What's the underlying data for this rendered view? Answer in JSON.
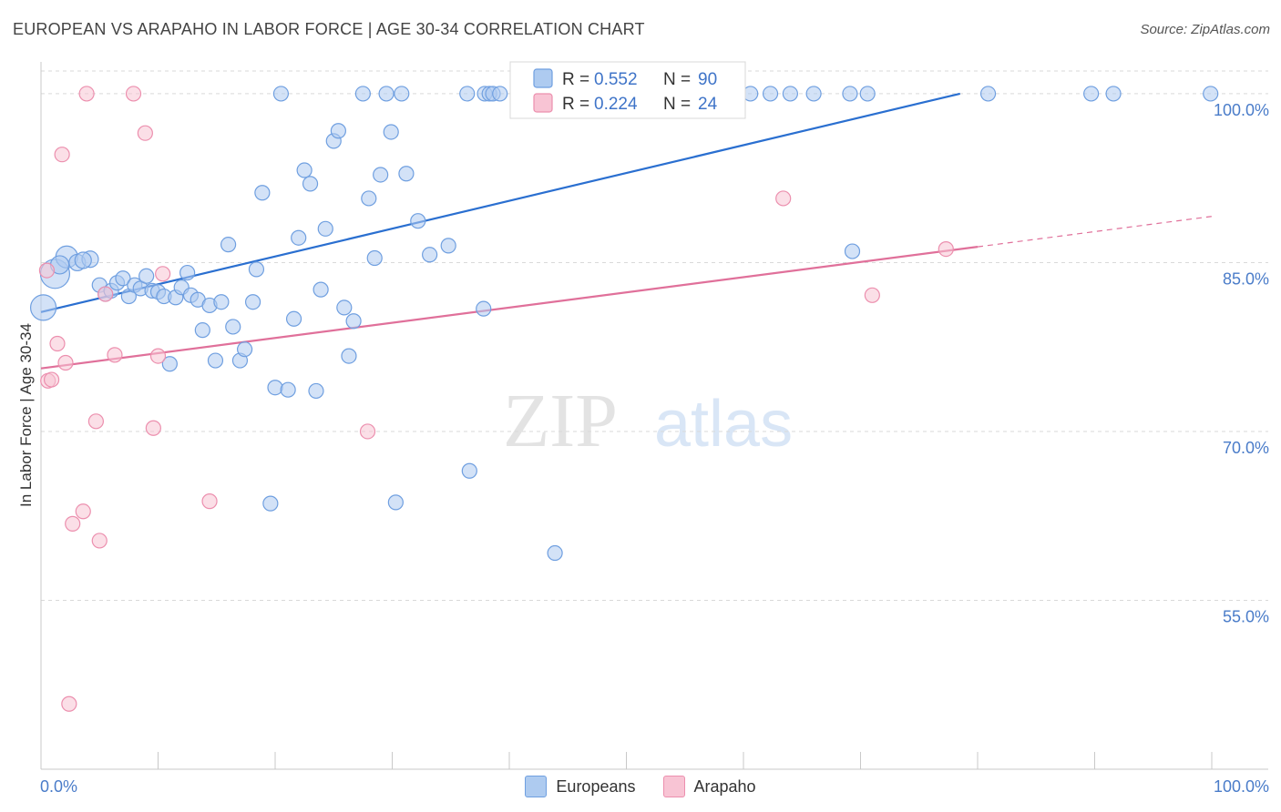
{
  "header": {
    "title": "EUROPEAN VS ARAPAHO IN LABOR FORCE | AGE 30-34 CORRELATION CHART",
    "source": "Source: ZipAtlas.com"
  },
  "watermark": {
    "zip": "ZIP",
    "atlas": "atlas"
  },
  "colors": {
    "europeans_fill": "#aecbf0",
    "europeans_stroke": "#6f9fe0",
    "europeans_line": "#2a6fd0",
    "arapaho_fill": "#f8c4d4",
    "arapaho_stroke": "#ec8fae",
    "arapaho_line": "#e0709a",
    "accent_text": "#3f74c8",
    "grid": "#d9d9d9"
  },
  "chart_data": {
    "type": "scatter",
    "title": "EUROPEAN VS ARAPAHO IN LABOR FORCE | AGE 30-34 CORRELATION CHART",
    "xlabel": "",
    "ylabel": "In Labor Force | Age 30-34",
    "xlim": [
      0,
      100
    ],
    "ylim": [
      40,
      102.5
    ],
    "x_tick_labels": [
      "0.0%",
      "100.0%"
    ],
    "y_ticks": [
      55,
      70,
      85,
      100
    ],
    "y_tick_labels": [
      "55.0%",
      "70.0%",
      "85.0%",
      "100.0%"
    ],
    "grid": true,
    "legend": {
      "position": "top-center",
      "entries": [
        {
          "series": "Europeans",
          "r_label": "R =",
          "r_value": "0.552",
          "n_label": "N =",
          "n_value": "90"
        },
        {
          "series": "Arapaho",
          "r_label": "R =",
          "r_value": "0.224",
          "n_label": "N =",
          "n_value": "24"
        }
      ]
    },
    "series": [
      {
        "name": "Europeans",
        "trend": {
          "x": [
            0,
            78.5
          ],
          "y": [
            80.6,
            100.0
          ]
        },
        "points": [
          {
            "x": 0.2,
            "y": 81.0,
            "s": 14
          },
          {
            "x": 1.2,
            "y": 84.0,
            "s": 16
          },
          {
            "x": 2.2,
            "y": 85.5,
            "s": 12
          },
          {
            "x": 1.6,
            "y": 84.8,
            "s": 10
          },
          {
            "x": 3.1,
            "y": 85.0,
            "s": 9
          },
          {
            "x": 4.2,
            "y": 85.3,
            "s": 9
          },
          {
            "x": 3.6,
            "y": 85.2,
            "s": 9
          },
          {
            "x": 5.0,
            "y": 83.0,
            "s": 8
          },
          {
            "x": 5.5,
            "y": 82.2,
            "s": 8
          },
          {
            "x": 6.0,
            "y": 82.5,
            "s": 8
          },
          {
            "x": 6.5,
            "y": 83.2,
            "s": 8
          },
          {
            "x": 7.0,
            "y": 83.6,
            "s": 8
          },
          {
            "x": 7.5,
            "y": 82.0,
            "s": 8
          },
          {
            "x": 8.0,
            "y": 83.0,
            "s": 8
          },
          {
            "x": 8.5,
            "y": 82.7,
            "s": 8
          },
          {
            "x": 9.0,
            "y": 83.8,
            "s": 8
          },
          {
            "x": 9.5,
            "y": 82.5,
            "s": 8
          },
          {
            "x": 10.0,
            "y": 82.4,
            "s": 8
          },
          {
            "x": 10.5,
            "y": 82.0,
            "s": 8
          },
          {
            "x": 11.0,
            "y": 76.0,
            "s": 8
          },
          {
            "x": 11.5,
            "y": 81.9,
            "s": 8
          },
          {
            "x": 12.0,
            "y": 82.8,
            "s": 8
          },
          {
            "x": 12.5,
            "y": 84.1,
            "s": 8
          },
          {
            "x": 12.8,
            "y": 82.1,
            "s": 8
          },
          {
            "x": 13.4,
            "y": 81.7,
            "s": 8
          },
          {
            "x": 13.8,
            "y": 79.0,
            "s": 8
          },
          {
            "x": 14.4,
            "y": 81.2,
            "s": 8
          },
          {
            "x": 14.9,
            "y": 76.3,
            "s": 8
          },
          {
            "x": 15.4,
            "y": 81.5,
            "s": 8
          },
          {
            "x": 16.0,
            "y": 86.6,
            "s": 8
          },
          {
            "x": 16.4,
            "y": 79.3,
            "s": 8
          },
          {
            "x": 17.0,
            "y": 76.3,
            "s": 8
          },
          {
            "x": 17.4,
            "y": 77.3,
            "s": 8
          },
          {
            "x": 18.1,
            "y": 81.5,
            "s": 8
          },
          {
            "x": 18.4,
            "y": 84.4,
            "s": 8
          },
          {
            "x": 18.9,
            "y": 91.2,
            "s": 8
          },
          {
            "x": 19.6,
            "y": 63.6,
            "s": 8
          },
          {
            "x": 20.0,
            "y": 73.9,
            "s": 8
          },
          {
            "x": 20.5,
            "y": 100.0,
            "s": 8
          },
          {
            "x": 21.1,
            "y": 73.7,
            "s": 8
          },
          {
            "x": 21.6,
            "y": 80.0,
            "s": 8
          },
          {
            "x": 22.0,
            "y": 87.2,
            "s": 8
          },
          {
            "x": 22.5,
            "y": 93.2,
            "s": 8
          },
          {
            "x": 23.0,
            "y": 92.0,
            "s": 8
          },
          {
            "x": 23.5,
            "y": 73.6,
            "s": 8
          },
          {
            "x": 23.9,
            "y": 82.6,
            "s": 8
          },
          {
            "x": 24.3,
            "y": 88.0,
            "s": 8
          },
          {
            "x": 25.0,
            "y": 95.8,
            "s": 8
          },
          {
            "x": 25.4,
            "y": 96.7,
            "s": 8
          },
          {
            "x": 25.9,
            "y": 81.0,
            "s": 8
          },
          {
            "x": 26.3,
            "y": 76.7,
            "s": 8
          },
          {
            "x": 26.7,
            "y": 79.8,
            "s": 8
          },
          {
            "x": 27.5,
            "y": 100.0,
            "s": 8
          },
          {
            "x": 28.0,
            "y": 90.7,
            "s": 8
          },
          {
            "x": 28.5,
            "y": 85.4,
            "s": 8
          },
          {
            "x": 29.0,
            "y": 92.8,
            "s": 8
          },
          {
            "x": 29.5,
            "y": 100.0,
            "s": 8
          },
          {
            "x": 29.9,
            "y": 96.6,
            "s": 8
          },
          {
            "x": 30.3,
            "y": 63.7,
            "s": 8
          },
          {
            "x": 30.8,
            "y": 100.0,
            "s": 8
          },
          {
            "x": 31.2,
            "y": 92.9,
            "s": 8
          },
          {
            "x": 32.2,
            "y": 88.7,
            "s": 8
          },
          {
            "x": 33.2,
            "y": 85.7,
            "s": 8
          },
          {
            "x": 34.8,
            "y": 86.5,
            "s": 8
          },
          {
            "x": 36.4,
            "y": 100.0,
            "s": 8
          },
          {
            "x": 36.6,
            "y": 66.5,
            "s": 8
          },
          {
            "x": 37.9,
            "y": 100.0,
            "s": 8
          },
          {
            "x": 38.3,
            "y": 100.0,
            "s": 8
          },
          {
            "x": 38.6,
            "y": 100.0,
            "s": 8
          },
          {
            "x": 39.2,
            "y": 100.0,
            "s": 8
          },
          {
            "x": 37.8,
            "y": 80.9,
            "s": 8
          },
          {
            "x": 43.9,
            "y": 59.2,
            "s": 8
          },
          {
            "x": 44.5,
            "y": 100.0,
            "s": 8
          },
          {
            "x": 45.5,
            "y": 100.0,
            "s": 8
          },
          {
            "x": 48.2,
            "y": 100.0,
            "s": 8
          },
          {
            "x": 50.5,
            "y": 100.0,
            "s": 8
          },
          {
            "x": 54.1,
            "y": 100.0,
            "s": 8
          },
          {
            "x": 56.7,
            "y": 100.0,
            "s": 8
          },
          {
            "x": 60.6,
            "y": 100.0,
            "s": 8
          },
          {
            "x": 62.3,
            "y": 100.0,
            "s": 8
          },
          {
            "x": 64.0,
            "y": 100.0,
            "s": 8
          },
          {
            "x": 66.0,
            "y": 100.0,
            "s": 8
          },
          {
            "x": 69.1,
            "y": 100.0,
            "s": 8
          },
          {
            "x": 69.3,
            "y": 86.0,
            "s": 8
          },
          {
            "x": 70.6,
            "y": 100.0,
            "s": 8
          },
          {
            "x": 80.9,
            "y": 100.0,
            "s": 8
          },
          {
            "x": 89.7,
            "y": 100.0,
            "s": 8
          },
          {
            "x": 91.6,
            "y": 100.0,
            "s": 8
          },
          {
            "x": 99.9,
            "y": 100.0,
            "s": 8
          },
          {
            "x": 42.6,
            "y": 100.0,
            "s": 8
          }
        ]
      },
      {
        "name": "Arapaho",
        "trend": {
          "x": [
            0,
            80.0
          ],
          "y": [
            75.6,
            86.4
          ]
        },
        "dashed_extension": {
          "x": [
            80.0,
            100.0
          ],
          "y": [
            86.4,
            89.1
          ]
        },
        "points": [
          {
            "x": 0.5,
            "y": 84.3,
            "s": 8
          },
          {
            "x": 0.6,
            "y": 74.5,
            "s": 8
          },
          {
            "x": 0.9,
            "y": 74.6,
            "s": 8
          },
          {
            "x": 1.4,
            "y": 77.8,
            "s": 8
          },
          {
            "x": 1.8,
            "y": 94.6,
            "s": 8
          },
          {
            "x": 2.1,
            "y": 76.1,
            "s": 8
          },
          {
            "x": 2.4,
            "y": 45.8,
            "s": 8
          },
          {
            "x": 2.7,
            "y": 61.8,
            "s": 8
          },
          {
            "x": 3.6,
            "y": 62.9,
            "s": 8
          },
          {
            "x": 3.9,
            "y": 100.0,
            "s": 8
          },
          {
            "x": 4.7,
            "y": 70.9,
            "s": 8
          },
          {
            "x": 5.0,
            "y": 60.3,
            "s": 8
          },
          {
            "x": 5.5,
            "y": 82.2,
            "s": 8
          },
          {
            "x": 6.3,
            "y": 76.8,
            "s": 8
          },
          {
            "x": 7.9,
            "y": 100.0,
            "s": 8
          },
          {
            "x": 8.9,
            "y": 96.5,
            "s": 8
          },
          {
            "x": 9.6,
            "y": 70.3,
            "s": 8
          },
          {
            "x": 10.0,
            "y": 76.7,
            "s": 8
          },
          {
            "x": 10.4,
            "y": 84.0,
            "s": 8
          },
          {
            "x": 14.4,
            "y": 63.8,
            "s": 8
          },
          {
            "x": 27.9,
            "y": 70.0,
            "s": 8
          },
          {
            "x": 63.4,
            "y": 90.7,
            "s": 8
          },
          {
            "x": 71.0,
            "y": 82.1,
            "s": 8
          },
          {
            "x": 77.3,
            "y": 86.2,
            "s": 8
          }
        ]
      }
    ]
  }
}
